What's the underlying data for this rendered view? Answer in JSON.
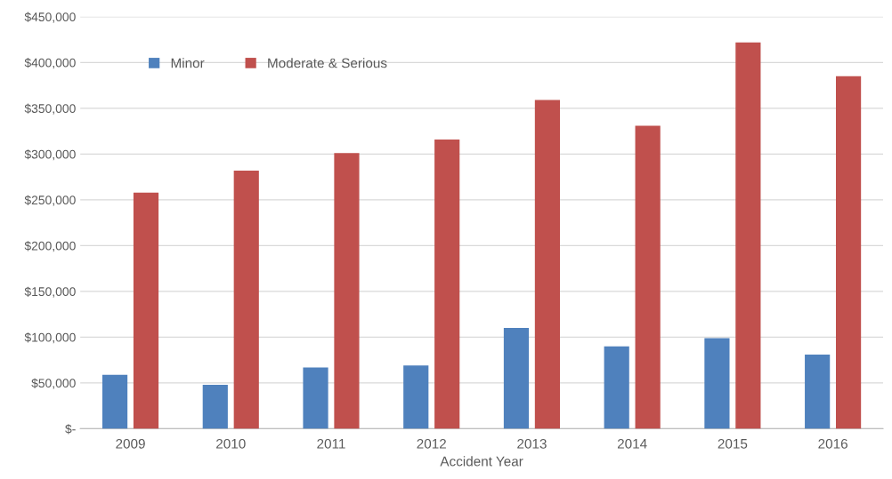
{
  "chart_data": {
    "type": "bar",
    "xlabel": "Accident Year",
    "categories": [
      "2009",
      "2010",
      "2011",
      "2012",
      "2013",
      "2014",
      "2015",
      "2016"
    ],
    "series": [
      {
        "name": "Minor",
        "color": "#4f81bd",
        "values": [
          59000,
          48000,
          67000,
          69000,
          110000,
          90000,
          99000,
          81000
        ]
      },
      {
        "name": "Moderate & Serious",
        "color": "#c0504d",
        "values": [
          258000,
          282000,
          301000,
          316000,
          359000,
          331000,
          422000,
          385000
        ]
      }
    ],
    "ylim": [
      0,
      450000
    ],
    "yticks": [
      {
        "value": 0,
        "label": "$-"
      },
      {
        "value": 50000,
        "label": "$50,000"
      },
      {
        "value": 100000,
        "label": "$100,000"
      },
      {
        "value": 150000,
        "label": "$150,000"
      },
      {
        "value": 200000,
        "label": "$200,000"
      },
      {
        "value": 250000,
        "label": "$250,000"
      },
      {
        "value": 300000,
        "label": "$300,000"
      },
      {
        "value": 350000,
        "label": "$350,000"
      },
      {
        "value": 400000,
        "label": "$400,000"
      },
      {
        "value": 450000,
        "label": "$450,000"
      }
    ],
    "grid": "y",
    "legend": "top left"
  }
}
